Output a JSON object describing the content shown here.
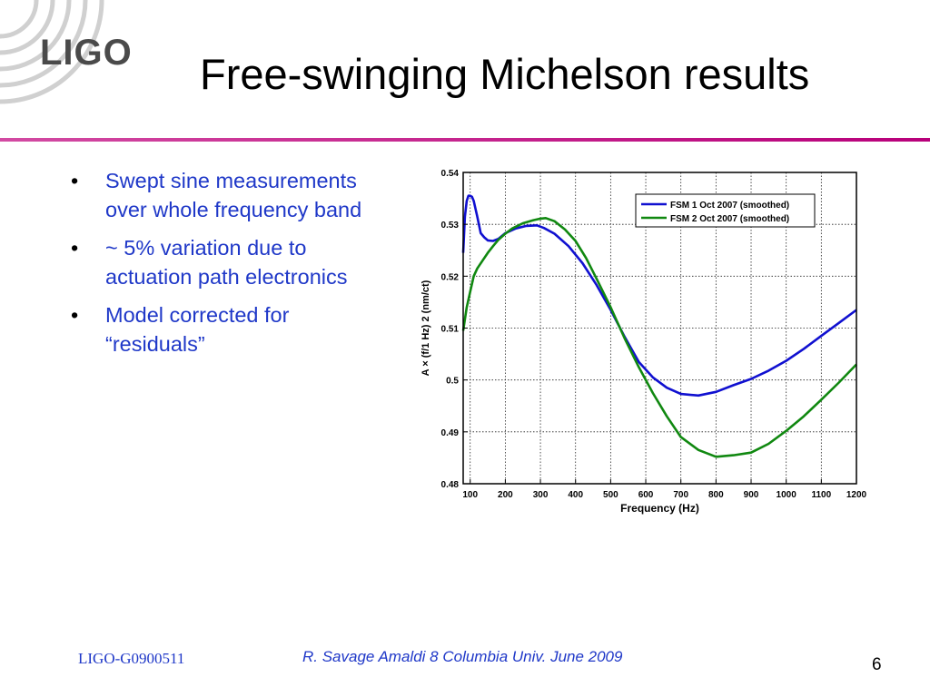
{
  "slide": {
    "logo_text": "LIGO",
    "title": "Free-swinging Michelson results",
    "bullets": [
      "Swept sine measurements over whole frequency band",
      "~ 5% variation due to actuation path electronics",
      "Model corrected for “residuals”"
    ],
    "bullet_glyph": "•",
    "footer_id": "LIGO-G0900511",
    "footer_credit": "R. Savage   Amaldi 8   Columbia Univ.   June 2009",
    "page_number": "6",
    "colors": {
      "text_blue": "#1f38c8",
      "rule_magenta": "#c0168a",
      "logo_gray": "#4a4a4a"
    }
  },
  "chart_data": {
    "type": "line",
    "xlabel": "Frequency (Hz)",
    "ylabel": "A × (f/1 Hz) 2 (nm/ct)",
    "xlim": [
      80,
      1200
    ],
    "ylim": [
      0.48,
      0.54
    ],
    "xticks": [
      100,
      200,
      300,
      400,
      500,
      600,
      700,
      800,
      900,
      1000,
      1100,
      1200
    ],
    "yticks": [
      0.48,
      0.49,
      0.5,
      0.51,
      0.52,
      0.53,
      0.54
    ],
    "ytick_labels": [
      "0.48",
      "0.49",
      "0.5",
      "0.51",
      "0.52",
      "0.53",
      "0.54"
    ],
    "grid": true,
    "legend_position": "top-right",
    "series": [
      {
        "name": "FSM 1 Oct 2007 (smoothed)",
        "color": "#1010d0",
        "x": [
          80,
          85,
          90,
          95,
          100,
          105,
          110,
          120,
          130,
          140,
          150,
          165,
          180,
          200,
          230,
          260,
          290,
          310,
          340,
          380,
          420,
          460,
          500,
          540,
          580,
          620,
          660,
          700,
          750,
          800,
          850,
          900,
          950,
          1000,
          1050,
          1100,
          1150,
          1200
        ],
        "y": [
          0.5245,
          0.5315,
          0.5345,
          0.5355,
          0.5355,
          0.5353,
          0.5345,
          0.5315,
          0.5283,
          0.5275,
          0.5269,
          0.5268,
          0.5272,
          0.5283,
          0.5292,
          0.5297,
          0.5298,
          0.5293,
          0.5282,
          0.5258,
          0.5225,
          0.5183,
          0.5135,
          0.5083,
          0.5035,
          0.5005,
          0.4985,
          0.4973,
          0.497,
          0.4977,
          0.499,
          0.5002,
          0.5018,
          0.5037,
          0.506,
          0.5085,
          0.511,
          0.5135
        ]
      },
      {
        "name": "FSM 2 Oct 2007 (smoothed)",
        "color": "#108810",
        "x": [
          80,
          90,
          100,
          110,
          120,
          135,
          150,
          165,
          180,
          200,
          220,
          250,
          280,
          300,
          315,
          340,
          370,
          400,
          430,
          460,
          500,
          540,
          580,
          620,
          660,
          700,
          750,
          800,
          850,
          900,
          950,
          1000,
          1050,
          1100,
          1150,
          1200
        ],
        "y": [
          0.5095,
          0.514,
          0.517,
          0.52,
          0.5215,
          0.523,
          0.5245,
          0.5258,
          0.527,
          0.5282,
          0.5292,
          0.5302,
          0.5308,
          0.5311,
          0.5312,
          0.5306,
          0.529,
          0.5268,
          0.5235,
          0.5195,
          0.514,
          0.508,
          0.5025,
          0.4975,
          0.493,
          0.489,
          0.4865,
          0.4852,
          0.4855,
          0.486,
          0.4877,
          0.4902,
          0.493,
          0.4962,
          0.4995,
          0.503
        ]
      }
    ]
  }
}
